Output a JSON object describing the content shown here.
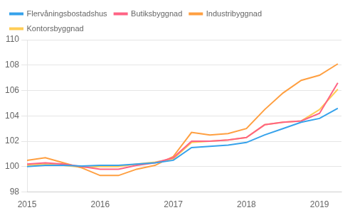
{
  "chart_data": {
    "type": "line",
    "x": [
      2015.0,
      2015.25,
      2015.5,
      2015.75,
      2016.0,
      2016.25,
      2016.5,
      2016.75,
      2017.0,
      2017.25,
      2017.5,
      2017.75,
      2018.0,
      2018.25,
      2018.5,
      2018.75,
      2019.0,
      2019.25
    ],
    "series": [
      {
        "name": "Flervåningsbostadshus",
        "values": [
          100.0,
          100.1,
          100.1,
          100.05,
          100.1,
          100.1,
          100.2,
          100.3,
          100.5,
          101.5,
          101.6,
          101.7,
          101.9,
          102.5,
          103.0,
          103.5,
          103.8,
          104.6
        ]
      },
      {
        "name": "Butiksbyggnad",
        "values": [
          100.2,
          100.3,
          100.2,
          100.0,
          99.8,
          99.8,
          100.1,
          100.3,
          100.7,
          102.0,
          102.0,
          102.1,
          102.3,
          103.3,
          103.5,
          103.6,
          104.2,
          106.6
        ]
      },
      {
        "name": "Industribyggnad",
        "values": [
          100.5,
          100.7,
          100.3,
          99.9,
          99.3,
          99.3,
          99.8,
          100.1,
          100.8,
          102.7,
          102.5,
          102.6,
          103.0,
          104.5,
          105.8,
          106.8,
          107.2,
          108.1
        ]
      },
      {
        "name": "Kontorsbyggnad",
        "values": [
          100.1,
          100.2,
          100.1,
          99.95,
          100.0,
          100.0,
          100.2,
          100.35,
          100.6,
          101.9,
          102.0,
          102.1,
          102.3,
          103.3,
          103.5,
          103.6,
          104.5,
          106.1
        ]
      }
    ],
    "xlim": [
      2015.0,
      2019.3
    ],
    "xticks": [
      2015,
      2016,
      2017,
      2018,
      2019
    ],
    "ylim": [
      98,
      110
    ],
    "yticks": [
      98,
      100,
      102,
      104,
      106,
      108,
      110
    ],
    "grid": "y",
    "legend": "upper left"
  }
}
